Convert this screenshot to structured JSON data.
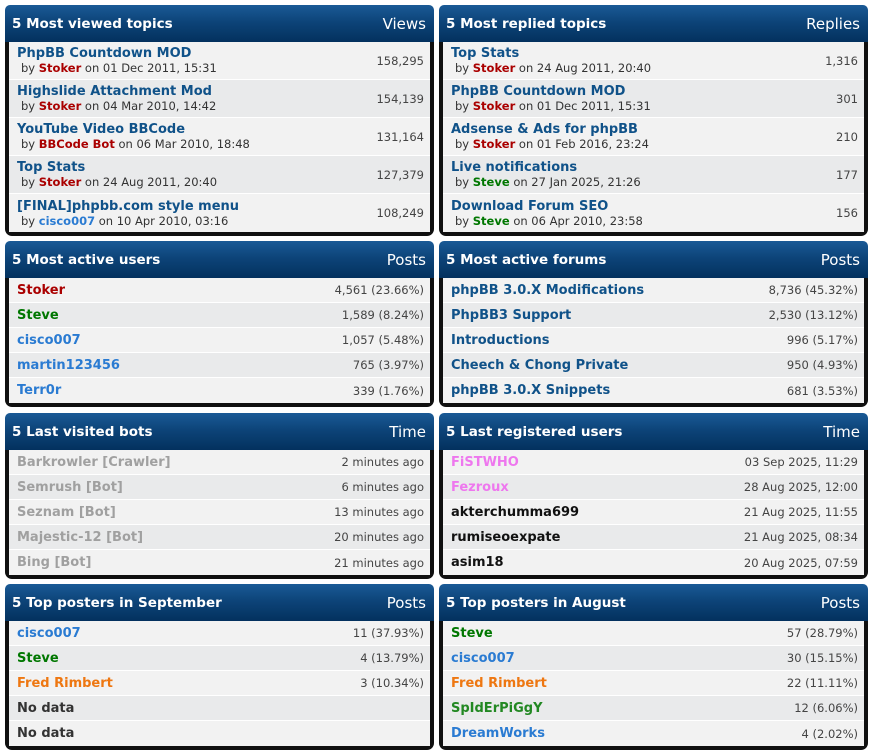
{
  "colors": {
    "header_bg": "#0d4479",
    "admin_red": "#aa0000",
    "mod_green": "#007700",
    "user_blue": "#2a7bd2",
    "orange": "#ee7711",
    "bot_gray": "#a0a0a0",
    "pink": "#ee77ee",
    "link": "#105289"
  },
  "viewed": {
    "title": "5 Most viewed topics",
    "col": "Views",
    "rows": [
      {
        "topic": "PhpBB Countdown MOD",
        "by": "by",
        "user": "Stoker",
        "on": "on 01 Dec 2011, 15:31",
        "value": "158,295"
      },
      {
        "topic": "Highslide Attachment Mod",
        "by": "by",
        "user": "Stoker",
        "on": "on 04 Mar 2010, 14:42",
        "value": "154,139"
      },
      {
        "topic": "YouTube Video BBCode",
        "by": "by",
        "user": "BBCode Bot",
        "on": "on 06 Mar 2010, 18:48",
        "value": "131,164"
      },
      {
        "topic": "Top Stats",
        "by": "by",
        "user": "Stoker",
        "on": "on 24 Aug 2011, 20:40",
        "value": "127,379"
      },
      {
        "topic": "[FINAL]phpbb.com style menu",
        "by": "by",
        "user": "cisco007",
        "on": "on 10 Apr 2010, 03:16",
        "value": "108,249"
      }
    ]
  },
  "replied": {
    "title": "5 Most replied topics",
    "col": "Replies",
    "rows": [
      {
        "topic": "Top Stats",
        "by": "by",
        "user": "Stoker",
        "on": "on 24 Aug 2011, 20:40",
        "value": "1,316"
      },
      {
        "topic": "PhpBB Countdown MOD",
        "by": "by",
        "user": "Stoker",
        "on": "on 01 Dec 2011, 15:31",
        "value": "301"
      },
      {
        "topic": "Adsense & Ads for phpBB",
        "by": "by",
        "user": "Stoker",
        "on": "on 01 Feb 2016, 23:24",
        "value": "210"
      },
      {
        "topic": "Live notifications",
        "by": "by",
        "user": "Steve",
        "on": "on 27 Jan 2025, 21:26",
        "value": "177"
      },
      {
        "topic": "Download Forum SEO",
        "by": "by",
        "user": "Steve",
        "on": "on 06 Apr 2010, 23:58",
        "value": "156"
      }
    ]
  },
  "active_users": {
    "title": "5 Most active users",
    "col": "Posts",
    "rows": [
      {
        "name": "Stoker",
        "value": "4,561 (23.66%)"
      },
      {
        "name": "Steve",
        "value": "1,589 (8.24%)"
      },
      {
        "name": "cisco007",
        "value": "1,057 (5.48%)"
      },
      {
        "name": "martin123456",
        "value": "765 (3.97%)"
      },
      {
        "name": "Terr0r",
        "value": "339 (1.76%)"
      }
    ]
  },
  "active_forums": {
    "title": "5 Most active forums",
    "col": "Posts",
    "rows": [
      {
        "name": "phpBB 3.0.X Modifications",
        "value": "8,736 (45.32%)"
      },
      {
        "name": "PhpBB3 Support",
        "value": "2,530 (13.12%)"
      },
      {
        "name": "Introductions",
        "value": "996 (5.17%)"
      },
      {
        "name": "Cheech & Chong Private",
        "value": "950 (4.93%)"
      },
      {
        "name": "phpBB 3.0.X Snippets",
        "value": "681 (3.53%)"
      }
    ]
  },
  "bots": {
    "title": "5 Last visited bots",
    "col": "Time",
    "rows": [
      {
        "name": "Barkrowler [Crawler]",
        "value": "2 minutes ago"
      },
      {
        "name": "Semrush [Bot]",
        "value": "6 minutes ago"
      },
      {
        "name": "Seznam [Bot]",
        "value": "13 minutes ago"
      },
      {
        "name": "Majestic-12 [Bot]",
        "value": "20 minutes ago"
      },
      {
        "name": "Bing [Bot]",
        "value": "21 minutes ago"
      }
    ]
  },
  "registered": {
    "title": "5 Last registered users",
    "col": "Time",
    "rows": [
      {
        "name": "FiSTWHO",
        "value": "03 Sep 2025, 11:29"
      },
      {
        "name": "Fezroux",
        "value": "28 Aug 2025, 12:00"
      },
      {
        "name": "akterchumma699",
        "value": "21 Aug 2025, 11:55"
      },
      {
        "name": "rumiseoexpate",
        "value": "21 Aug 2025, 08:34"
      },
      {
        "name": "asim18",
        "value": "20 Aug 2025, 07:59"
      }
    ]
  },
  "posters_sep": {
    "title": "5 Top posters in September",
    "col": "Posts",
    "rows": [
      {
        "name": "cisco007",
        "value": "11 (37.93%)"
      },
      {
        "name": "Steve",
        "value": "4 (13.79%)"
      },
      {
        "name": "Fred Rimbert",
        "value": "3 (10.34%)"
      },
      {
        "name": "No data",
        "value": ""
      },
      {
        "name": "No data",
        "value": ""
      }
    ]
  },
  "posters_aug": {
    "title": "5 Top posters in August",
    "col": "Posts",
    "rows": [
      {
        "name": "Steve",
        "value": "57 (28.79%)"
      },
      {
        "name": "cisco007",
        "value": "30 (15.15%)"
      },
      {
        "name": "Fred Rimbert",
        "value": "22 (11.11%)"
      },
      {
        "name": "SpIdErPiGgY",
        "value": "12 (6.06%)"
      },
      {
        "name": "DreamWorks",
        "value": "4 (2.02%)"
      }
    ]
  }
}
